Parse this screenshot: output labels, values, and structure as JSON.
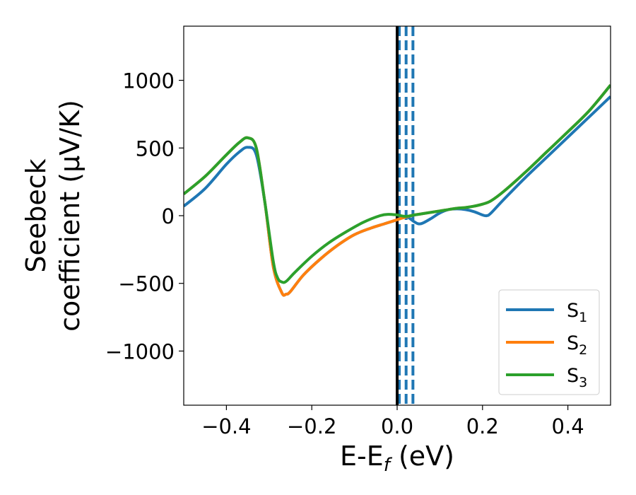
{
  "chart_data": {
    "type": "line",
    "xlabel_main": "E-E",
    "xlabel_sub": "f",
    "xlabel_unit": " (eV)",
    "ylabel_line1": "Seebeck",
    "ylabel_line2": "coefficient  (μV/K)",
    "xlim": [
      -0.5,
      0.5
    ],
    "ylim": [
      -1400,
      1400
    ],
    "xticks": [
      -0.4,
      -0.2,
      0.0,
      0.2,
      0.4
    ],
    "xtick_labels": [
      "−0.4",
      "−0.2",
      "0.0",
      "0.2",
      "0.4"
    ],
    "yticks": [
      -1000,
      -500,
      0,
      500,
      1000
    ],
    "ytick_labels": [
      "−1000",
      "−500",
      "0",
      "500",
      "1000"
    ],
    "grid": false,
    "legend_position": "lower-right",
    "fermi_line": {
      "x": 0.0,
      "color": "#000000"
    },
    "dashed_lines": {
      "x": [
        0.005,
        0.021,
        0.037
      ],
      "color": "#1f77b4"
    },
    "series": [
      {
        "name": "S",
        "sub": "1",
        "color": "#1f77b4",
        "x": [
          -0.5,
          -0.45,
          -0.4,
          -0.37,
          -0.35,
          -0.33,
          -0.31,
          -0.29,
          -0.27,
          -0.26,
          -0.25,
          -0.22,
          -0.18,
          -0.14,
          -0.1,
          -0.06,
          -0.03,
          0.0,
          0.02,
          0.04,
          0.05,
          0.06,
          0.08,
          0.1,
          0.12,
          0.14,
          0.16,
          0.18,
          0.2,
          0.21,
          0.22,
          0.25,
          0.3,
          0.35,
          0.4,
          0.45,
          0.5
        ],
        "y": [
          70,
          200,
          380,
          470,
          505,
          450,
          100,
          -380,
          -570,
          -580,
          -560,
          -440,
          -320,
          -220,
          -140,
          -90,
          -60,
          -30,
          -5,
          -45,
          -60,
          -55,
          -20,
          20,
          45,
          50,
          45,
          30,
          5,
          0,
          20,
          120,
          280,
          430,
          580,
          730,
          880
        ]
      },
      {
        "name": "S",
        "sub": "2",
        "color": "#ff7f0e",
        "x": [
          -0.5,
          -0.45,
          -0.4,
          -0.37,
          -0.35,
          -0.33,
          -0.31,
          -0.29,
          -0.27,
          -0.26,
          -0.25,
          -0.22,
          -0.18,
          -0.14,
          -0.1,
          -0.06,
          -0.03,
          0.0,
          0.02,
          0.04,
          0.06,
          0.1,
          0.14,
          0.16,
          0.18,
          0.2,
          0.22,
          0.25,
          0.3,
          0.35,
          0.4,
          0.45,
          0.5
        ],
        "y": [
          160,
          290,
          450,
          540,
          575,
          500,
          100,
          -380,
          -570,
          -580,
          -560,
          -440,
          -320,
          -220,
          -140,
          -90,
          -60,
          -30,
          -10,
          5,
          15,
          35,
          55,
          60,
          70,
          85,
          110,
          180,
          320,
          470,
          620,
          775,
          965
        ]
      },
      {
        "name": "S",
        "sub": "3",
        "color": "#2ca02c",
        "x": [
          -0.5,
          -0.45,
          -0.4,
          -0.37,
          -0.35,
          -0.33,
          -0.31,
          -0.29,
          -0.28,
          -0.27,
          -0.26,
          -0.24,
          -0.2,
          -0.16,
          -0.12,
          -0.08,
          -0.04,
          -0.02,
          0.0,
          0.02,
          0.04,
          0.06,
          0.1,
          0.14,
          0.16,
          0.18,
          0.2,
          0.22,
          0.25,
          0.3,
          0.35,
          0.4,
          0.45,
          0.5
        ],
        "y": [
          160,
          290,
          450,
          540,
          575,
          500,
          100,
          -340,
          -460,
          -490,
          -485,
          -420,
          -300,
          -200,
          -120,
          -50,
          0,
          10,
          5,
          -5,
          5,
          15,
          35,
          55,
          60,
          70,
          85,
          110,
          180,
          320,
          470,
          620,
          775,
          965
        ]
      }
    ]
  }
}
